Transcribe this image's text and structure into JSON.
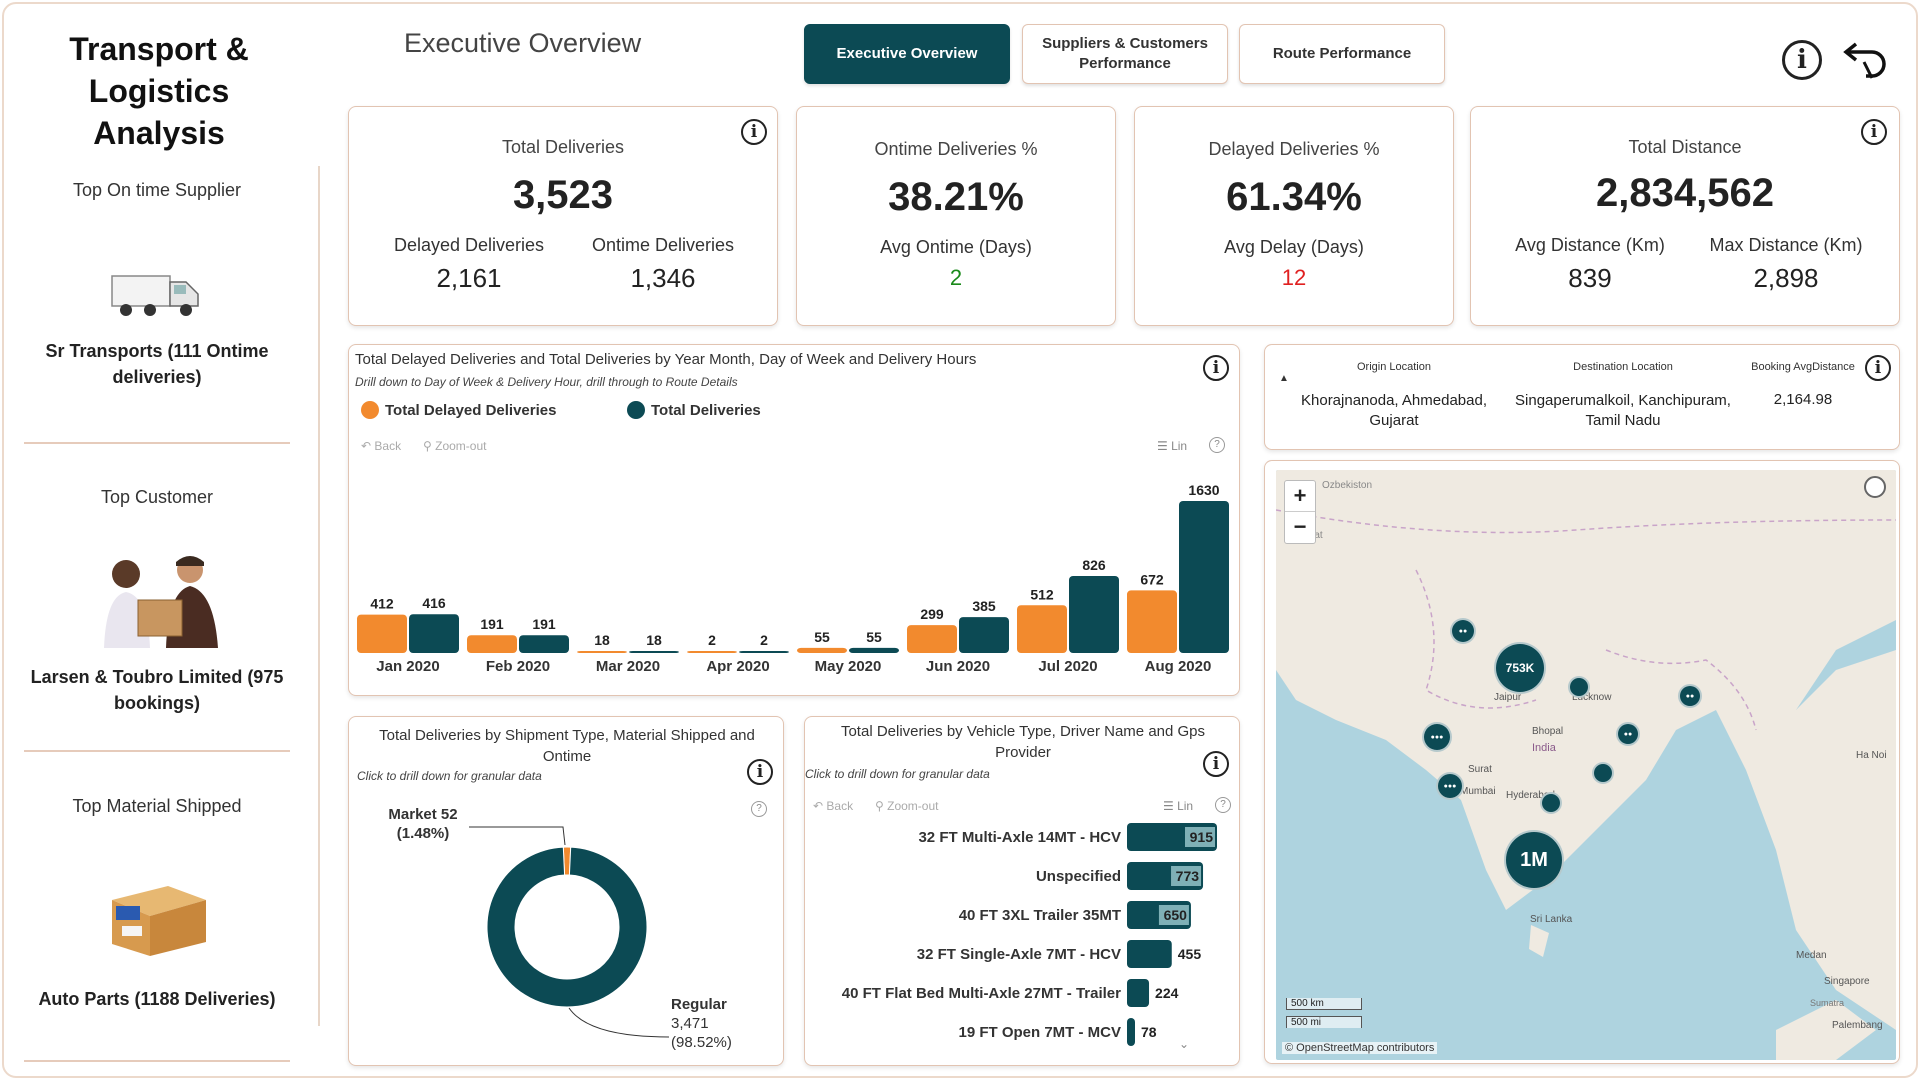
{
  "app": {
    "title_line1": "Transport &",
    "title_line2": "Logistics Analysis",
    "page_heading": "Executive Overview"
  },
  "nav": {
    "tabs": [
      {
        "label": "Executive Overview",
        "active": true
      },
      {
        "label": "Suppliers & Customers Performance",
        "active": false
      },
      {
        "label": "Route Performance",
        "active": false
      }
    ],
    "info_icon": "info-icon",
    "back_icon": "back-arrow-icon"
  },
  "sidebar": {
    "supplier": {
      "heading": "Top On time Supplier",
      "value": "Sr Transports (111 Ontime deliveries)",
      "image": "truck-icon"
    },
    "customer": {
      "heading": "Top Customer",
      "value": "Larsen & Toubro Limited (975 bookings)",
      "image": "delivery-people-icon"
    },
    "material": {
      "heading": "Top Material Shipped",
      "value": "Auto Parts (1188 Deliveries)",
      "image": "box-icon"
    }
  },
  "kpis": {
    "total_deliveries": {
      "title": "Total Deliveries",
      "value": "3,523",
      "sub1_label": "Delayed Deliveries",
      "sub1_value": "2,161",
      "sub2_label": "Ontime Deliveries",
      "sub2_value": "1,346"
    },
    "ontime_pct": {
      "title": "Ontime Deliveries %",
      "value": "38.21%",
      "sub_label": "Avg Ontime (Days)",
      "sub_value": "2",
      "sub_color": "#1a8a1a"
    },
    "delayed_pct": {
      "title": "Delayed Deliveries %",
      "value": "61.34%",
      "sub_label": "Avg Delay (Days)",
      "sub_value": "12",
      "sub_color": "#e02020"
    },
    "total_distance": {
      "title": "Total Distance",
      "value": "2,834,562",
      "sub1_label": "Avg Distance (Km)",
      "sub1_value": "839",
      "sub2_label": "Max Distance (Km)",
      "sub2_value": "2,898"
    }
  },
  "colors": {
    "orange": "#f28a2e",
    "teal": "#0c4a54",
    "accent_border": "#e2c4b2"
  },
  "bar_chart": {
    "title": "Total Delayed Deliveries and Total Deliveries by Year Month, Day of Week and Delivery Hours",
    "subtitle": "Drill down to Day of Week & Delivery Hour, drill through to Route Details",
    "back": "Back",
    "zoom_out": "Zoom-out",
    "lin": "Lin"
  },
  "donut_chart": {
    "title": "Total Deliveries by Shipment Type, Material Shipped and Ontime",
    "subtitle": "Click to drill down for granular data",
    "market_label": "Market 52",
    "market_pct": "(1.48%)",
    "regular_label": "Regular",
    "regular_value": "3,471",
    "regular_pct": "(98.52%)"
  },
  "vehicle_chart": {
    "title": "Total Deliveries by Vehicle Type, Driver Name and Gps Provider",
    "subtitle": "Click to drill down for granular data",
    "back": "Back",
    "zoom_out": "Zoom-out",
    "lin": "Lin"
  },
  "route_table": {
    "headers": [
      "Origin Location",
      "Destination Location",
      "Booking AvgDistance"
    ],
    "origin": "Khorajnanoda, Ahmedabad, Gujarat",
    "destination": "Singaperumalkoil, Kanchipuram, Tamil Nadu",
    "avg_distance": "2,164.98"
  },
  "map": {
    "bubble_753k": "753K",
    "bubble_1m": "1M",
    "scale_km": "500 km",
    "scale_mi": "500 mi",
    "attribution": "© OpenStreetMap contributors",
    "zoom_in": "+",
    "zoom_out": "−",
    "labels": [
      "Jaipur",
      "Lucknow",
      "Bhopal",
      "India",
      "Surat",
      "Mumbai",
      "Hyderabad",
      "Sri Lanka",
      "Medan",
      "Singapore",
      "Palembang",
      "Sumatra",
      "Ha Noi",
      "Asgabat",
      "Ozbekiston"
    ]
  },
  "chart_data": [
    {
      "type": "bar",
      "title": "Total Delayed Deliveries and Total Deliveries by Year Month, Day of Week and Delivery Hours",
      "categories": [
        "Jan 2020",
        "Feb 2020",
        "Mar 2020",
        "Apr 2020",
        "May 2020",
        "Jun 2020",
        "Jul 2020",
        "Aug 2020"
      ],
      "series": [
        {
          "name": "Total Delayed Deliveries",
          "values": [
            412,
            191,
            18,
            2,
            55,
            299,
            512,
            672
          ]
        },
        {
          "name": "Total Deliveries",
          "values": [
            416,
            191,
            18,
            2,
            55,
            385,
            826,
            1630
          ]
        }
      ],
      "ylim": [
        0,
        1630
      ],
      "legend": "top-left"
    },
    {
      "type": "pie",
      "title": "Total Deliveries by Shipment Type, Material Shipped and Ontime",
      "categories": [
        "Market",
        "Regular"
      ],
      "values": [
        52,
        3471
      ],
      "percent": [
        1.48,
        98.52
      ]
    },
    {
      "type": "bar",
      "title": "Total Deliveries by Vehicle Type, Driver Name and Gps Provider",
      "categories": [
        "32 FT Multi-Axle 14MT - HCV",
        "Unspecified",
        "40 FT 3XL Trailer 35MT",
        "32 FT Single-Axle 7MT - HCV",
        "40 FT Flat Bed Multi-Axle 27MT - Trailer",
        "19 FT Open 7MT - MCV"
      ],
      "values": [
        915,
        773,
        650,
        455,
        224,
        78
      ],
      "labels": [
        "915",
        "773",
        "650",
        "455",
        "224",
        "78"
      ]
    }
  ]
}
